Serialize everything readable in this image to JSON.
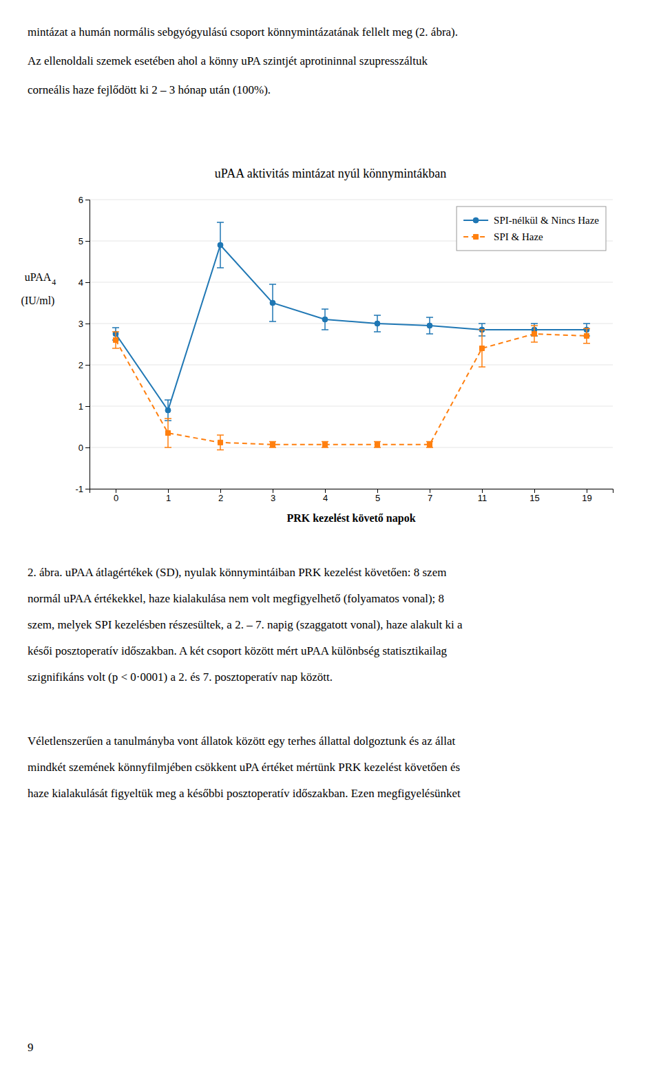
{
  "text_above": [
    "mintázat a humán normális sebgyógyulású csoport könnymintázatának fellelt meg (2. ábra).",
    "Az ellenoldali szemek esetében ahol a könny uPA szintjét aprotininnal szupresszáltuk",
    "corneális haze fejlődött ki 2 – 3 hónap után (100%)."
  ],
  "chart_data": {
    "type": "line",
    "title": "uPAA aktivitás mintázat nyúl könnymintákban",
    "x_label": "PRK kezelést követő napok",
    "y_label": "uPAA",
    "y_label_subscript": "4",
    "y_label_unit": "(IU/ml)",
    "categories": [
      "0",
      "1",
      "2",
      "3",
      "4",
      "5",
      "7",
      "11",
      "15",
      "19"
    ],
    "series": [
      {
        "name": "SPI-nélkül & Nincs Haze",
        "values": [
          2.75,
          0.9,
          4.9,
          3.5,
          3.1,
          3.0,
          2.95,
          2.85,
          2.85,
          2.85
        ],
        "errors": [
          0.15,
          0.25,
          0.55,
          0.45,
          0.25,
          0.2,
          0.2,
          0.15,
          0.15,
          0.15
        ],
        "marker": "circle",
        "line_style": "solid"
      },
      {
        "name": "SPI & Haze",
        "values": [
          2.6,
          0.35,
          0.12,
          0.07,
          0.07,
          0.07,
          0.07,
          2.4,
          2.75,
          2.7
        ],
        "errors": [
          0.2,
          0.35,
          0.18,
          0.07,
          0.07,
          0.07,
          0.07,
          0.45,
          0.2,
          0.18
        ],
        "marker": "square",
        "line_style": "dashed"
      }
    ],
    "ylim": [
      -1,
      6
    ],
    "yticks": [
      -1,
      0,
      1,
      2,
      3,
      4,
      5,
      6
    ],
    "grid": true,
    "legend": "upper right"
  },
  "text_below": [
    [
      "2. ábra. uPAA átlagértékek (SD), nyulak könnymintáiban PRK kezelést követően: 8 szem",
      "normál uPAA értékekkel, haze kialakulása nem volt megfigyelhető (folyamatos vonal); 8",
      "szem, melyek SPI kezelésben részesültek, a 2. – 7. napig (szaggatott vonal), haze alakult ki a",
      "késői posztoperatív időszakban. A két csoport között mért uPAA különbség statisztikailag",
      "szignifikáns volt (p < 0·0001) a 2. és 7. posztoperatív nap között."
    ],
    [
      "Véletlenszerűen a tanulmányba vont állatok között egy terhes állattal dolgoztunk és az állat",
      "mindkét szemének könnyfilmjében csökkent uPA értéket mértünk PRK kezelést követően és",
      "haze kialakulását figyeltük meg a későbbi posztoperatív időszakban. Ezen megfigyelésünket"
    ]
  ],
  "page_number": "9"
}
